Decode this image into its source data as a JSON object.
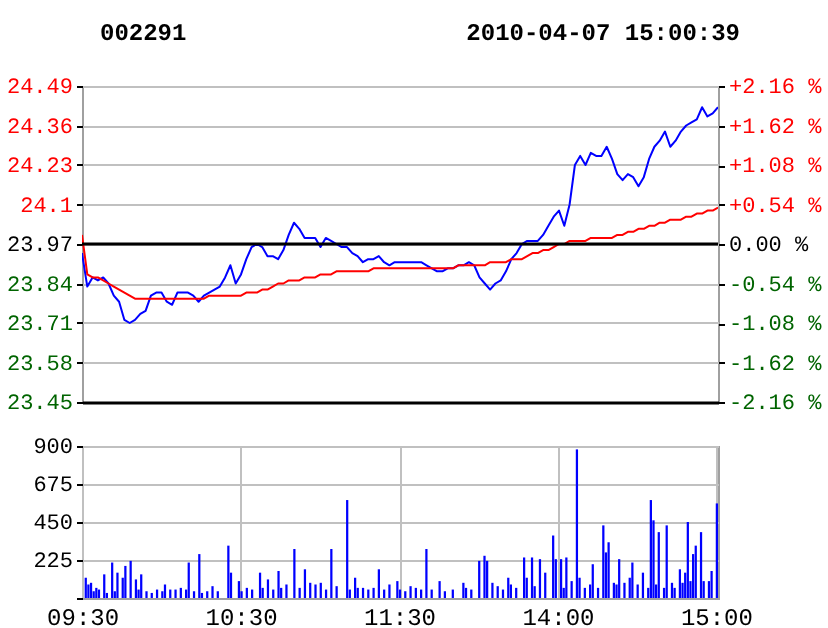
{
  "chart_data": [
    {
      "type": "line",
      "title": "002291",
      "annotations": [
        "2010-04-07 15:00:39"
      ],
      "categories": [
        null,
        null,
        null,
        null,
        null,
        null,
        null,
        null,
        null,
        null,
        null,
        null,
        null,
        null,
        null,
        null,
        null,
        null,
        null,
        null,
        null,
        null,
        null,
        null,
        null,
        null,
        null,
        null,
        null,
        null,
        null,
        null,
        null,
        null,
        null,
        null,
        null,
        null,
        null,
        null,
        null,
        null,
        null,
        null,
        null,
        null,
        null,
        null,
        null,
        null,
        null,
        null,
        null,
        null,
        null,
        null,
        null,
        null,
        null,
        null,
        null,
        null,
        null,
        null,
        null,
        null,
        null,
        null,
        null,
        null,
        null,
        null,
        null,
        null,
        null,
        null,
        null,
        null,
        null,
        null,
        null,
        null,
        null,
        null,
        null,
        null,
        null,
        null,
        null,
        null,
        null,
        null,
        null,
        null,
        null,
        null,
        null,
        null,
        null,
        null,
        null,
        null,
        null,
        null,
        null,
        null,
        null,
        null,
        null,
        null,
        null,
        null,
        null,
        null,
        null,
        null,
        null,
        null,
        null,
        null,
        null
      ],
      "ylim": [
        23.45,
        24.49
      ],
      "yticks": [
        23.45,
        23.58,
        23.71,
        23.84,
        23.97,
        24.1,
        24.23,
        24.36,
        24.49
      ],
      "y2lim": [
        -2.16,
        2.16
      ],
      "y2ticks": [
        {
          "value": -2.16,
          "label": "-2.16 %"
        },
        {
          "value": -1.62,
          "label": "-1.62 %"
        },
        {
          "value": -1.08,
          "label": "-1.08 %"
        },
        {
          "value": -0.54,
          "label": "-0.54 %"
        },
        {
          "value": 0,
          "label": "0.00 %"
        },
        {
          "value": 0.54,
          "label": "+0.54 %"
        },
        {
          "value": 1.08,
          "label": "+1.08 %"
        },
        {
          "value": 1.62,
          "label": "+1.62 %"
        },
        {
          "value": 2.16,
          "label": "+2.16 %"
        }
      ],
      "ref_lines": [
        {
          "axis": "y",
          "value": 23.97,
          "color": "#000000"
        }
      ],
      "grid": "y",
      "series": [
        {
          "color": "#0000ff",
          "values": [
            23.94,
            23.83,
            23.86,
            23.85,
            23.86,
            23.84,
            23.8,
            23.78,
            23.72,
            23.71,
            23.72,
            23.74,
            23.75,
            23.8,
            23.81,
            23.81,
            23.78,
            23.77,
            23.81,
            23.81,
            23.81,
            23.8,
            23.78,
            23.8,
            23.81,
            23.82,
            23.83,
            23.86,
            23.9,
            23.84,
            23.87,
            23.92,
            23.96,
            23.97,
            23.96,
            23.93,
            23.93,
            23.92,
            23.95,
            24.0,
            24.04,
            24.02,
            23.99,
            23.99,
            23.99,
            23.96,
            23.99,
            23.98,
            23.97,
            23.96,
            23.96,
            23.94,
            23.93,
            23.91,
            23.92,
            23.92,
            23.93,
            23.91,
            23.9,
            23.91,
            23.91,
            23.91,
            23.91,
            23.91,
            23.91,
            23.9,
            23.89,
            23.88,
            23.88,
            23.89,
            23.89,
            23.9,
            23.9,
            23.91,
            23.9,
            23.86,
            23.84,
            23.82,
            23.84,
            23.85,
            23.88,
            23.92,
            23.94,
            23.97,
            23.98,
            23.98,
            23.98,
            24.0,
            24.03,
            24.06,
            24.08,
            24.03,
            24.1,
            24.23,
            24.26,
            24.23,
            24.27,
            24.26,
            24.26,
            24.29,
            24.25,
            24.2,
            24.18,
            24.2,
            24.19,
            24.16,
            24.19,
            24.25,
            24.29,
            24.31,
            24.34,
            24.29,
            24.31,
            24.34,
            24.36,
            24.37,
            24.38,
            24.42,
            24.39,
            24.4,
            24.42
          ]
        },
        {
          "color": "#ff0000",
          "values": [
            24.0,
            23.87,
            23.86,
            23.86,
            23.85,
            23.84,
            23.83,
            23.82,
            23.81,
            23.8,
            23.79,
            23.79,
            23.79,
            23.79,
            23.79,
            23.79,
            23.79,
            23.79,
            23.79,
            23.79,
            23.79,
            23.79,
            23.79,
            23.79,
            23.8,
            23.8,
            23.8,
            23.8,
            23.8,
            23.8,
            23.8,
            23.81,
            23.81,
            23.81,
            23.82,
            23.82,
            23.83,
            23.84,
            23.84,
            23.85,
            23.85,
            23.85,
            23.86,
            23.86,
            23.86,
            23.87,
            23.87,
            23.87,
            23.88,
            23.88,
            23.88,
            23.88,
            23.88,
            23.88,
            23.88,
            23.89,
            23.89,
            23.89,
            23.89,
            23.89,
            23.89,
            23.89,
            23.89,
            23.89,
            23.89,
            23.89,
            23.89,
            23.89,
            23.89,
            23.89,
            23.89,
            23.9,
            23.9,
            23.9,
            23.9,
            23.9,
            23.9,
            23.91,
            23.91,
            23.91,
            23.91,
            23.92,
            23.92,
            23.92,
            23.93,
            23.94,
            23.94,
            23.95,
            23.95,
            23.96,
            23.97,
            23.97,
            23.98,
            23.98,
            23.98,
            23.98,
            23.99,
            23.99,
            23.99,
            23.99,
            23.99,
            24.0,
            24.0,
            24.01,
            24.01,
            24.02,
            24.02,
            24.03,
            24.03,
            24.04,
            24.04,
            24.05,
            24.05,
            24.05,
            24.06,
            24.06,
            24.07,
            24.07,
            24.08,
            24.08,
            24.09
          ]
        }
      ]
    },
    {
      "type": "bar",
      "color": "#0000ff",
      "categories": [
        "09:30",
        null,
        null,
        null,
        null,
        null,
        null,
        null,
        null,
        null,
        null,
        null,
        null,
        null,
        null,
        null,
        null,
        null,
        null,
        null,
        null,
        null,
        null,
        null,
        null,
        null,
        null,
        null,
        null,
        null,
        null,
        null,
        null,
        null,
        null,
        null,
        null,
        null,
        null,
        null,
        null,
        null,
        null,
        null,
        null,
        null,
        null,
        null,
        null,
        null,
        null,
        null,
        null,
        null,
        null,
        null,
        null,
        null,
        null,
        null,
        "10:30",
        null,
        null,
        null,
        null,
        null,
        null,
        null,
        null,
        null,
        null,
        null,
        null,
        null,
        null,
        null,
        null,
        null,
        null,
        null,
        null,
        null,
        null,
        null,
        null,
        null,
        null,
        null,
        null,
        null,
        null,
        null,
        null,
        null,
        null,
        null,
        null,
        null,
        null,
        null,
        null,
        null,
        null,
        null,
        null,
        null,
        null,
        null,
        null,
        null,
        null,
        null,
        null,
        null,
        null,
        null,
        null,
        null,
        null,
        null,
        "11:30",
        null,
        null,
        null,
        null,
        null,
        null,
        null,
        null,
        null,
        null,
        null,
        null,
        null,
        null,
        null,
        null,
        null,
        null,
        null,
        null,
        null,
        null,
        null,
        null,
        null,
        null,
        null,
        null,
        null,
        null,
        null,
        null,
        null,
        null,
        null,
        null,
        null,
        null,
        null,
        null,
        null,
        null,
        null,
        null,
        null,
        null,
        null,
        null,
        null,
        null,
        null,
        null,
        null,
        null,
        null,
        null,
        null,
        null,
        null,
        "14:00",
        null,
        null,
        null,
        null,
        null,
        null,
        null,
        null,
        null,
        null,
        null,
        null,
        null,
        null,
        null,
        null,
        null,
        null,
        null,
        null,
        null,
        null,
        null,
        null,
        null,
        null,
        null,
        null,
        null,
        null,
        null,
        null,
        null,
        null,
        null,
        null,
        null,
        null,
        null,
        null,
        null,
        null,
        null,
        null,
        null,
        null,
        null,
        null,
        null,
        null,
        null,
        null,
        null,
        null,
        null,
        null,
        null,
        null,
        null,
        "15:00"
      ],
      "ylim": [
        0,
        900
      ],
      "yticks": [
        {
          "value": 0,
          "label": null
        },
        225,
        450,
        675,
        900
      ],
      "grid": true,
      "values": [
        null,
        120,
        80,
        90,
        40,
        60,
        50,
        null,
        140,
        30,
        null,
        210,
        40,
        150,
        null,
        120,
        190,
        null,
        220,
        null,
        110,
        50,
        140,
        null,
        40,
        null,
        30,
        null,
        50,
        null,
        40,
        80,
        null,
        50,
        null,
        50,
        null,
        60,
        null,
        50,
        210,
        null,
        40,
        null,
        260,
        30,
        null,
        40,
        null,
        70,
        null,
        40,
        null,
        null,
        null,
        310,
        150,
        null,
        null,
        100,
        40,
        null,
        60,
        null,
        50,
        null,
        null,
        150,
        60,
        null,
        110,
        null,
        50,
        null,
        160,
        60,
        null,
        80,
        null,
        null,
        290,
        null,
        60,
        null,
        170,
        null,
        90,
        null,
        80,
        null,
        90,
        null,
        50,
        null,
        290,
        null,
        70,
        null,
        null,
        null,
        580,
        50,
        null,
        120,
        60,
        null,
        60,
        null,
        50,
        null,
        60,
        null,
        170,
        null,
        50,
        null,
        80,
        null,
        null,
        100,
        50,
        null,
        40,
        null,
        70,
        null,
        60,
        null,
        50,
        null,
        290,
        null,
        50,
        null,
        null,
        100,
        null,
        40,
        null,
        null,
        50,
        null,
        null,
        null,
        90,
        60,
        null,
        50,
        null,
        null,
        220,
        null,
        250,
        220,
        null,
        90,
        null,
        70,
        null,
        50,
        null,
        120,
        80,
        null,
        60,
        null,
        null,
        240,
        120,
        null,
        240,
        70,
        null,
        230,
        null,
        150,
        null,
        null,
        370,
        230,
        null,
        230,
        60,
        240,
        null,
        100,
        null,
        880,
        120,
        null,
        60,
        null,
        80,
        200,
        null,
        60,
        null,
        430,
        270,
        330,
        null,
        90,
        80,
        230,
        null,
        90,
        null,
        120,
        210,
        null,
        80,
        null,
        150,
        null,
        60,
        580,
        460,
        80,
        390,
        null,
        60,
        430,
        null,
        90,
        60,
        null,
        170,
        90,
        150,
        450,
        100,
        260,
        310,
        null,
        390,
        100,
        null,
        100,
        160,
        null,
        560
      ]
    }
  ]
}
